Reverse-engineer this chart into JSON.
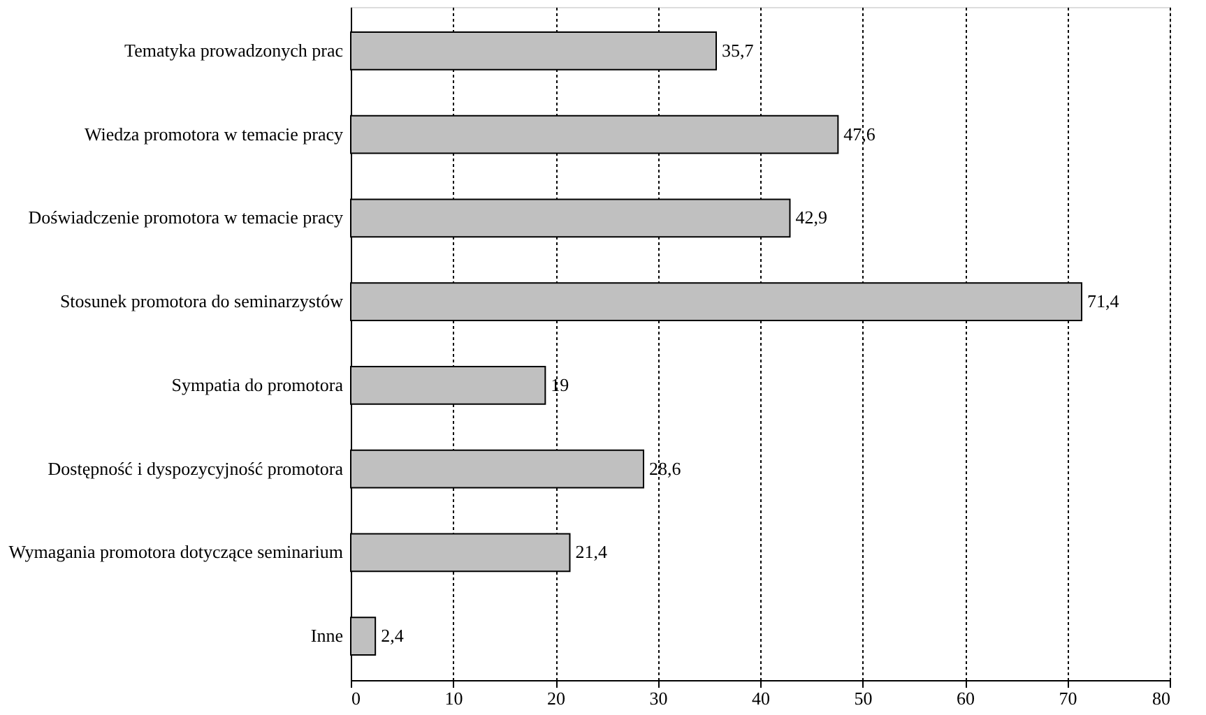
{
  "chart_data": {
    "type": "bar",
    "orientation": "horizontal",
    "categories": [
      "Tematyka prowadzonych prac",
      "Wiedza promotora w temacie pracy",
      "Doświadczenie promotora w temacie pracy",
      "Stosunek promotora do seminarzystów",
      "Sympatia do promotora",
      "Dostępność i dyspozycyjność promotora",
      "Wymagania promotora dotyczące seminarium",
      "Inne"
    ],
    "values": [
      35.7,
      47.6,
      42.9,
      71.4,
      19,
      28.6,
      21.4,
      2.4
    ],
    "value_labels": [
      "35,7",
      "47,6",
      "42,9",
      "71,4",
      "19",
      "28,6",
      "21,4",
      "2,4"
    ],
    "color": "#c0c0c0",
    "xlim": [
      0,
      80
    ],
    "xticks": [
      0,
      10,
      20,
      30,
      40,
      50,
      60,
      70,
      80
    ],
    "grid": "x"
  }
}
